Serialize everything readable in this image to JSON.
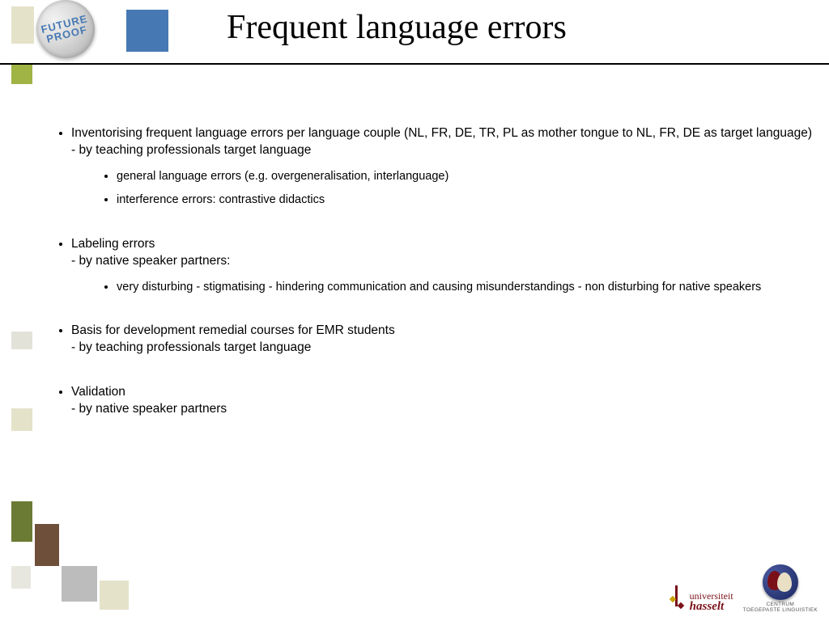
{
  "title": "Frequent language errors",
  "badge": {
    "line1": "FUTURE",
    "line2": "PROOF"
  },
  "bullets": {
    "b1": {
      "text": "Inventorising frequent language errors per language couple (NL, FR, DE, TR, PL as mother tongue to NL, FR, DE as target language)\n- by teaching professionals target language",
      "sub": {
        "s1": "general language errors (e.g. overgeneralisation, interlanguage)",
        "s2": "interference errors: contrastive didactics"
      }
    },
    "b2": {
      "text": "Labeling errors\n- by native speaker partners:",
      "sub": {
        "s1": "very disturbing - stigmatising - hindering communication and causing misunderstandings - non disturbing for native speakers"
      }
    },
    "b3": {
      "text": "Basis for development remedial courses for EMR students\n- by teaching professionals target language"
    },
    "b4": {
      "text": "Validation\n- by native speaker partners"
    }
  },
  "footer": {
    "uni1": "universiteit",
    "uni2": "hasselt",
    "ctl": "CENTRUM\nTOEGEPASTE LINGUISTIEK"
  },
  "colors": {
    "blue": "#4679b3",
    "green": "#a0b345",
    "olive": "#6c7b33",
    "brown": "#6e4f3a",
    "beige": "#e4e2c9",
    "grey": "#bcbcbc",
    "uni_red": "#7a1018"
  }
}
